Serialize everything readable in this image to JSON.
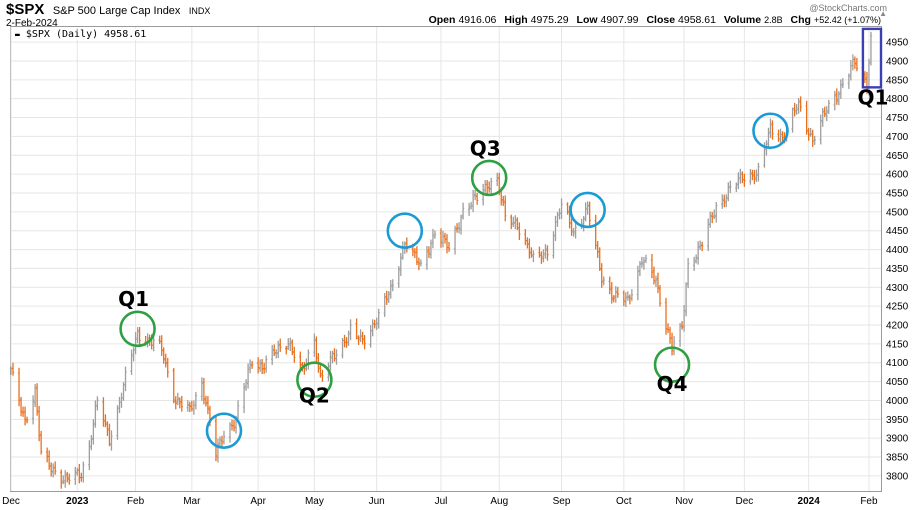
{
  "header": {
    "symbol": "$SPX",
    "name": "S&P 500 Large Cap Index",
    "exchange": "INDX",
    "date": "2-Feb-2024",
    "credit": "@StockCharts.com",
    "open_label": "Open",
    "open": "4916.06",
    "high_label": "High",
    "high": "4975.29",
    "low_label": "Low",
    "low": "4907.99",
    "close_label": "Close",
    "close": "4958.61",
    "volume_label": "Volume",
    "volume": "2.8B",
    "chg_label": "Chg",
    "chg": "+52.42 (+1.07%)"
  },
  "legend": {
    "text": "$SPX (Daily) 4958.61",
    "icon": "chart-type-icon"
  },
  "chart_data": {
    "type": "line",
    "ylim": [
      3760,
      4990
    ],
    "y_ticks": [
      3800,
      3850,
      3900,
      3950,
      4000,
      4050,
      4100,
      4150,
      4200,
      4250,
      4300,
      4350,
      4400,
      4450,
      4500,
      4550,
      4600,
      4650,
      4700,
      4750,
      4800,
      4850,
      4900,
      4950
    ],
    "x_range": [
      "2022-12-01",
      "2024-02-07"
    ],
    "x_ticks": [
      {
        "date": "2022-12-01",
        "label": "Dec",
        "bold": false
      },
      {
        "date": "2023-01-03",
        "label": "2023",
        "bold": true
      },
      {
        "date": "2023-02-01",
        "label": "Feb",
        "bold": false
      },
      {
        "date": "2023-03-01",
        "label": "Mar",
        "bold": false
      },
      {
        "date": "2023-04-03",
        "label": "Apr",
        "bold": false
      },
      {
        "date": "2023-05-01",
        "label": "May",
        "bold": false
      },
      {
        "date": "2023-06-01",
        "label": "Jun",
        "bold": false
      },
      {
        "date": "2023-07-03",
        "label": "Jul",
        "bold": false
      },
      {
        "date": "2023-08-01",
        "label": "Aug",
        "bold": false
      },
      {
        "date": "2023-09-01",
        "label": "Sep",
        "bold": false
      },
      {
        "date": "2023-10-02",
        "label": "Oct",
        "bold": false
      },
      {
        "date": "2023-11-01",
        "label": "Nov",
        "bold": false
      },
      {
        "date": "2023-12-01",
        "label": "Dec",
        "bold": false
      },
      {
        "date": "2024-01-02",
        "label": "2024",
        "bold": true
      },
      {
        "date": "2024-02-01",
        "label": "Feb",
        "bold": false
      }
    ],
    "series": [
      {
        "values": [
          [
            "2022-12-01",
            4076
          ],
          [
            "2022-12-05",
            4000
          ],
          [
            "2022-12-08",
            3950
          ],
          [
            "2022-12-13",
            4020
          ],
          [
            "2022-12-16",
            3855
          ],
          [
            "2022-12-22",
            3820
          ],
          [
            "2022-12-28",
            3785
          ],
          [
            "2023-01-05",
            3810
          ],
          [
            "2023-01-09",
            3880
          ],
          [
            "2023-01-13",
            3995
          ],
          [
            "2023-01-19",
            3900
          ],
          [
            "2023-01-25",
            4015
          ],
          [
            "2023-02-02",
            4180
          ],
          [
            "2023-02-07",
            4160
          ],
          [
            "2023-02-14",
            4135
          ],
          [
            "2023-02-21",
            4000
          ],
          [
            "2023-02-28",
            3970
          ],
          [
            "2023-03-06",
            4050
          ],
          [
            "2023-03-13",
            3855
          ],
          [
            "2023-03-17",
            3915
          ],
          [
            "2023-03-23",
            3950
          ],
          [
            "2023-03-31",
            4110
          ],
          [
            "2023-04-05",
            4090
          ],
          [
            "2023-04-14",
            4140
          ],
          [
            "2023-04-18",
            4160
          ],
          [
            "2023-04-25",
            4070
          ],
          [
            "2023-05-01",
            4165
          ],
          [
            "2023-05-04",
            4060
          ],
          [
            "2023-05-12",
            4125
          ],
          [
            "2023-05-19",
            4190
          ],
          [
            "2023-05-25",
            4150
          ],
          [
            "2023-06-01",
            4220
          ],
          [
            "2023-06-09",
            4300
          ],
          [
            "2023-06-15",
            4425
          ],
          [
            "2023-06-23",
            4350
          ],
          [
            "2023-06-30",
            4450
          ],
          [
            "2023-07-07",
            4400
          ],
          [
            "2023-07-14",
            4505
          ],
          [
            "2023-07-21",
            4535
          ],
          [
            "2023-07-27",
            4580
          ],
          [
            "2023-07-31",
            4585
          ],
          [
            "2023-08-04",
            4480
          ],
          [
            "2023-08-10",
            4470
          ],
          [
            "2023-08-18",
            4370
          ],
          [
            "2023-08-25",
            4400
          ],
          [
            "2023-09-01",
            4515
          ],
          [
            "2023-09-07",
            4450
          ],
          [
            "2023-09-14",
            4505
          ],
          [
            "2023-09-21",
            4330
          ],
          [
            "2023-09-27",
            4275
          ],
          [
            "2023-10-04",
            4265
          ],
          [
            "2023-10-11",
            4375
          ],
          [
            "2023-10-18",
            4315
          ],
          [
            "2023-10-26",
            4140
          ],
          [
            "2023-10-31",
            4190
          ],
          [
            "2023-11-03",
            4360
          ],
          [
            "2023-11-10",
            4415
          ],
          [
            "2023-11-17",
            4515
          ],
          [
            "2023-11-24",
            4560
          ],
          [
            "2023-12-01",
            4595
          ],
          [
            "2023-12-08",
            4605
          ],
          [
            "2023-12-14",
            4720
          ],
          [
            "2023-12-20",
            4700
          ],
          [
            "2023-12-28",
            4785
          ],
          [
            "2024-01-04",
            4690
          ],
          [
            "2024-01-12",
            4780
          ],
          [
            "2024-01-19",
            4840
          ],
          [
            "2024-01-25",
            4895
          ],
          [
            "2024-01-31",
            4845
          ],
          [
            "2024-02-02",
            4958
          ]
        ]
      }
    ],
    "up_color": "#9e9e9e",
    "down_color": "#e8701e",
    "annotations": [
      {
        "type": "circle",
        "date": "2023-02-02",
        "value": 4190,
        "color": "#2ea043"
      },
      {
        "type": "circle",
        "date": "2023-03-17",
        "value": 3920,
        "color": "#1c9ad6"
      },
      {
        "type": "circle",
        "date": "2023-05-01",
        "value": 4055,
        "color": "#2ea043"
      },
      {
        "type": "circle",
        "date": "2023-06-15",
        "value": 4450,
        "color": "#1c9ad6"
      },
      {
        "type": "circle",
        "date": "2023-07-27",
        "value": 4590,
        "color": "#2ea043"
      },
      {
        "type": "circle",
        "date": "2023-09-14",
        "value": 4505,
        "color": "#1c9ad6"
      },
      {
        "type": "circle",
        "date": "2023-10-26",
        "value": 4095,
        "color": "#2ea043"
      },
      {
        "type": "circle",
        "date": "2023-12-14",
        "value": 4715,
        "color": "#1c9ad6"
      },
      {
        "type": "rect",
        "date_start": "2024-01-29",
        "date_end": "2024-02-07",
        "low": 4830,
        "high": 4985,
        "color": "#3b3fb5"
      }
    ],
    "labels": [
      {
        "text": "Q1",
        "date": "2023-01-31",
        "value": 4250
      },
      {
        "text": "Q2",
        "date": "2023-05-01",
        "value": 3995
      },
      {
        "text": "Q3",
        "date": "2023-07-25",
        "value": 4650
      },
      {
        "text": "Q4",
        "date": "2023-10-26",
        "value": 4025
      },
      {
        "text": "Q1",
        "date": "2024-02-03",
        "value": 4785
      }
    ]
  }
}
